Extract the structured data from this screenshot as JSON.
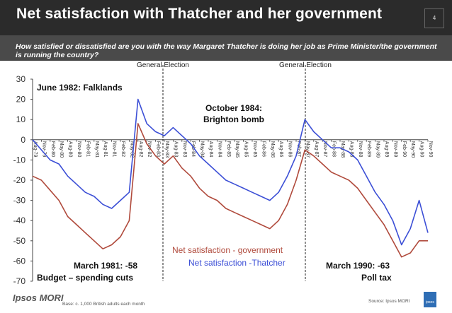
{
  "header": {
    "title": "Net satisfaction with Thatcher and her government",
    "page_number": "4"
  },
  "question": "How satisfied or dissatisfied are you with the way Margaret Thatcher is doing her job as Prime Minister/the government is running the country?",
  "footer": {
    "logo": "Ipsos MORI",
    "base_note": "Base: c. 1,000 British adults each month",
    "source": "Source: Ipsos MORI",
    "mark": "ipsos"
  },
  "colors": {
    "government": "#b04a3c",
    "thatcher": "#3c4fd6",
    "header_bg": "#2b2b2b",
    "subband_bg": "#4a4a4a"
  },
  "chart_data": {
    "type": "line",
    "title": "",
    "ylim": [
      -70,
      30
    ],
    "yticks": [
      "30",
      "20",
      "10",
      "0",
      "-10",
      "-20",
      "-30",
      "-40",
      "-50",
      "-60",
      "-70"
    ],
    "categories": [
      "Aug-79",
      "Nov-79",
      "Feb-80",
      "May-80",
      "Aug-80",
      "Nov-80",
      "Feb-81",
      "May-81",
      "Aug-81",
      "Nov-81",
      "Feb-82",
      "May-82",
      "Aug-82",
      "Nov-82",
      "Feb-83",
      "May-83",
      "Aug-83",
      "Nov-83",
      "Feb-84",
      "May-84",
      "Aug-84",
      "Nov-84",
      "Feb-85",
      "May-85",
      "Aug-85",
      "Nov-85",
      "Feb-86",
      "May-86",
      "Aug-86",
      "Nov-86",
      "Feb-87",
      "May-87",
      "Aug-87",
      "Nov-87",
      "Feb-88",
      "May-88",
      "Aug-88",
      "Nov-88",
      "Feb-89",
      "May-89",
      "Aug-89",
      "Nov-89",
      "Feb-90",
      "May-90",
      "Aug-90",
      "Nov-90"
    ],
    "series": [
      {
        "name": "Net satisfaction - government",
        "values": [
          -18,
          -20,
          -25,
          -30,
          -38,
          -42,
          -46,
          -50,
          -54,
          -52,
          -48,
          -40,
          8,
          -2,
          -8,
          -12,
          -8,
          -14,
          -18,
          -24,
          -28,
          -30,
          -34,
          -36,
          -38,
          -40,
          -42,
          -44,
          -40,
          -32,
          -20,
          -5,
          -8,
          -12,
          -16,
          -18,
          -20,
          -24,
          -30,
          -36,
          -42,
          -50,
          -58,
          -56,
          -50,
          -50
        ]
      },
      {
        "name": "Net satisfaction -Thatcher",
        "values": [
          0,
          -5,
          -10,
          -12,
          -18,
          -22,
          -26,
          -28,
          -32,
          -34,
          -30,
          -26,
          20,
          8,
          4,
          2,
          6,
          2,
          -2,
          -8,
          -12,
          -16,
          -20,
          -22,
          -24,
          -26,
          -28,
          -30,
          -26,
          -18,
          -8,
          10,
          4,
          0,
          -4,
          -4,
          -6,
          -10,
          -18,
          -26,
          -32,
          -40,
          -52,
          -44,
          -30,
          -46
        ]
      }
    ],
    "annotations": [
      {
        "text": "June 1982: Falklands"
      },
      {
        "text": "October 1984:"
      },
      {
        "text": "Brighton bomb"
      },
      {
        "text": "March 1981: -58"
      },
      {
        "text": "Budget – spending cuts"
      },
      {
        "text": "March 1990: -63"
      },
      {
        "text": "Poll tax"
      }
    ],
    "election_labels": [
      "General Election",
      "General Election"
    ],
    "election_categories": [
      "May-83",
      "Jun-87"
    ],
    "legend": [
      "Net satisfaction - government",
      "Net satisfaction -Thatcher"
    ]
  }
}
